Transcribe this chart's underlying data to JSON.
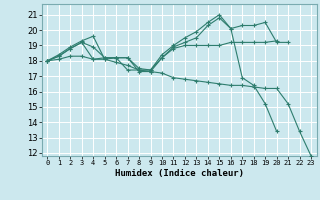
{
  "title": "",
  "xlabel": "Humidex (Indice chaleur)",
  "bg_color": "#cce8ee",
  "grid_color": "#ffffff",
  "line_color": "#2e7d6e",
  "xlim": [
    -0.5,
    23.5
  ],
  "ylim": [
    11.8,
    21.7
  ],
  "xticks": [
    0,
    1,
    2,
    3,
    4,
    5,
    6,
    7,
    8,
    9,
    10,
    11,
    12,
    13,
    14,
    15,
    16,
    17,
    18,
    19,
    20,
    21,
    22,
    23
  ],
  "yticks": [
    12,
    13,
    14,
    15,
    16,
    17,
    18,
    19,
    20,
    21
  ],
  "series": [
    [
      18.0,
      18.4,
      18.9,
      19.3,
      19.6,
      18.1,
      18.2,
      18.2,
      17.3,
      17.3,
      18.2,
      18.8,
      19.0,
      19.0,
      19.0,
      19.0,
      19.2,
      19.2,
      19.2,
      19.2,
      19.3,
      null,
      null,
      null
    ],
    [
      18.0,
      18.3,
      18.8,
      19.2,
      18.1,
      18.2,
      18.2,
      17.4,
      17.4,
      17.4,
      18.2,
      18.9,
      19.2,
      19.5,
      20.3,
      20.8,
      20.1,
      20.3,
      20.3,
      20.5,
      19.2,
      19.2,
      null,
      null
    ],
    [
      18.0,
      18.3,
      18.8,
      19.2,
      18.9,
      18.2,
      18.2,
      18.2,
      17.5,
      17.4,
      18.4,
      19.0,
      19.5,
      19.9,
      20.5,
      21.0,
      20.1,
      16.9,
      16.4,
      15.2,
      13.4,
      null,
      null,
      null
    ],
    [
      18.0,
      18.1,
      18.3,
      18.3,
      18.1,
      18.1,
      17.9,
      17.7,
      17.4,
      17.3,
      17.2,
      16.9,
      16.8,
      16.7,
      16.6,
      16.5,
      16.4,
      16.4,
      16.3,
      16.2,
      16.2,
      15.2,
      13.4,
      11.8
    ]
  ]
}
